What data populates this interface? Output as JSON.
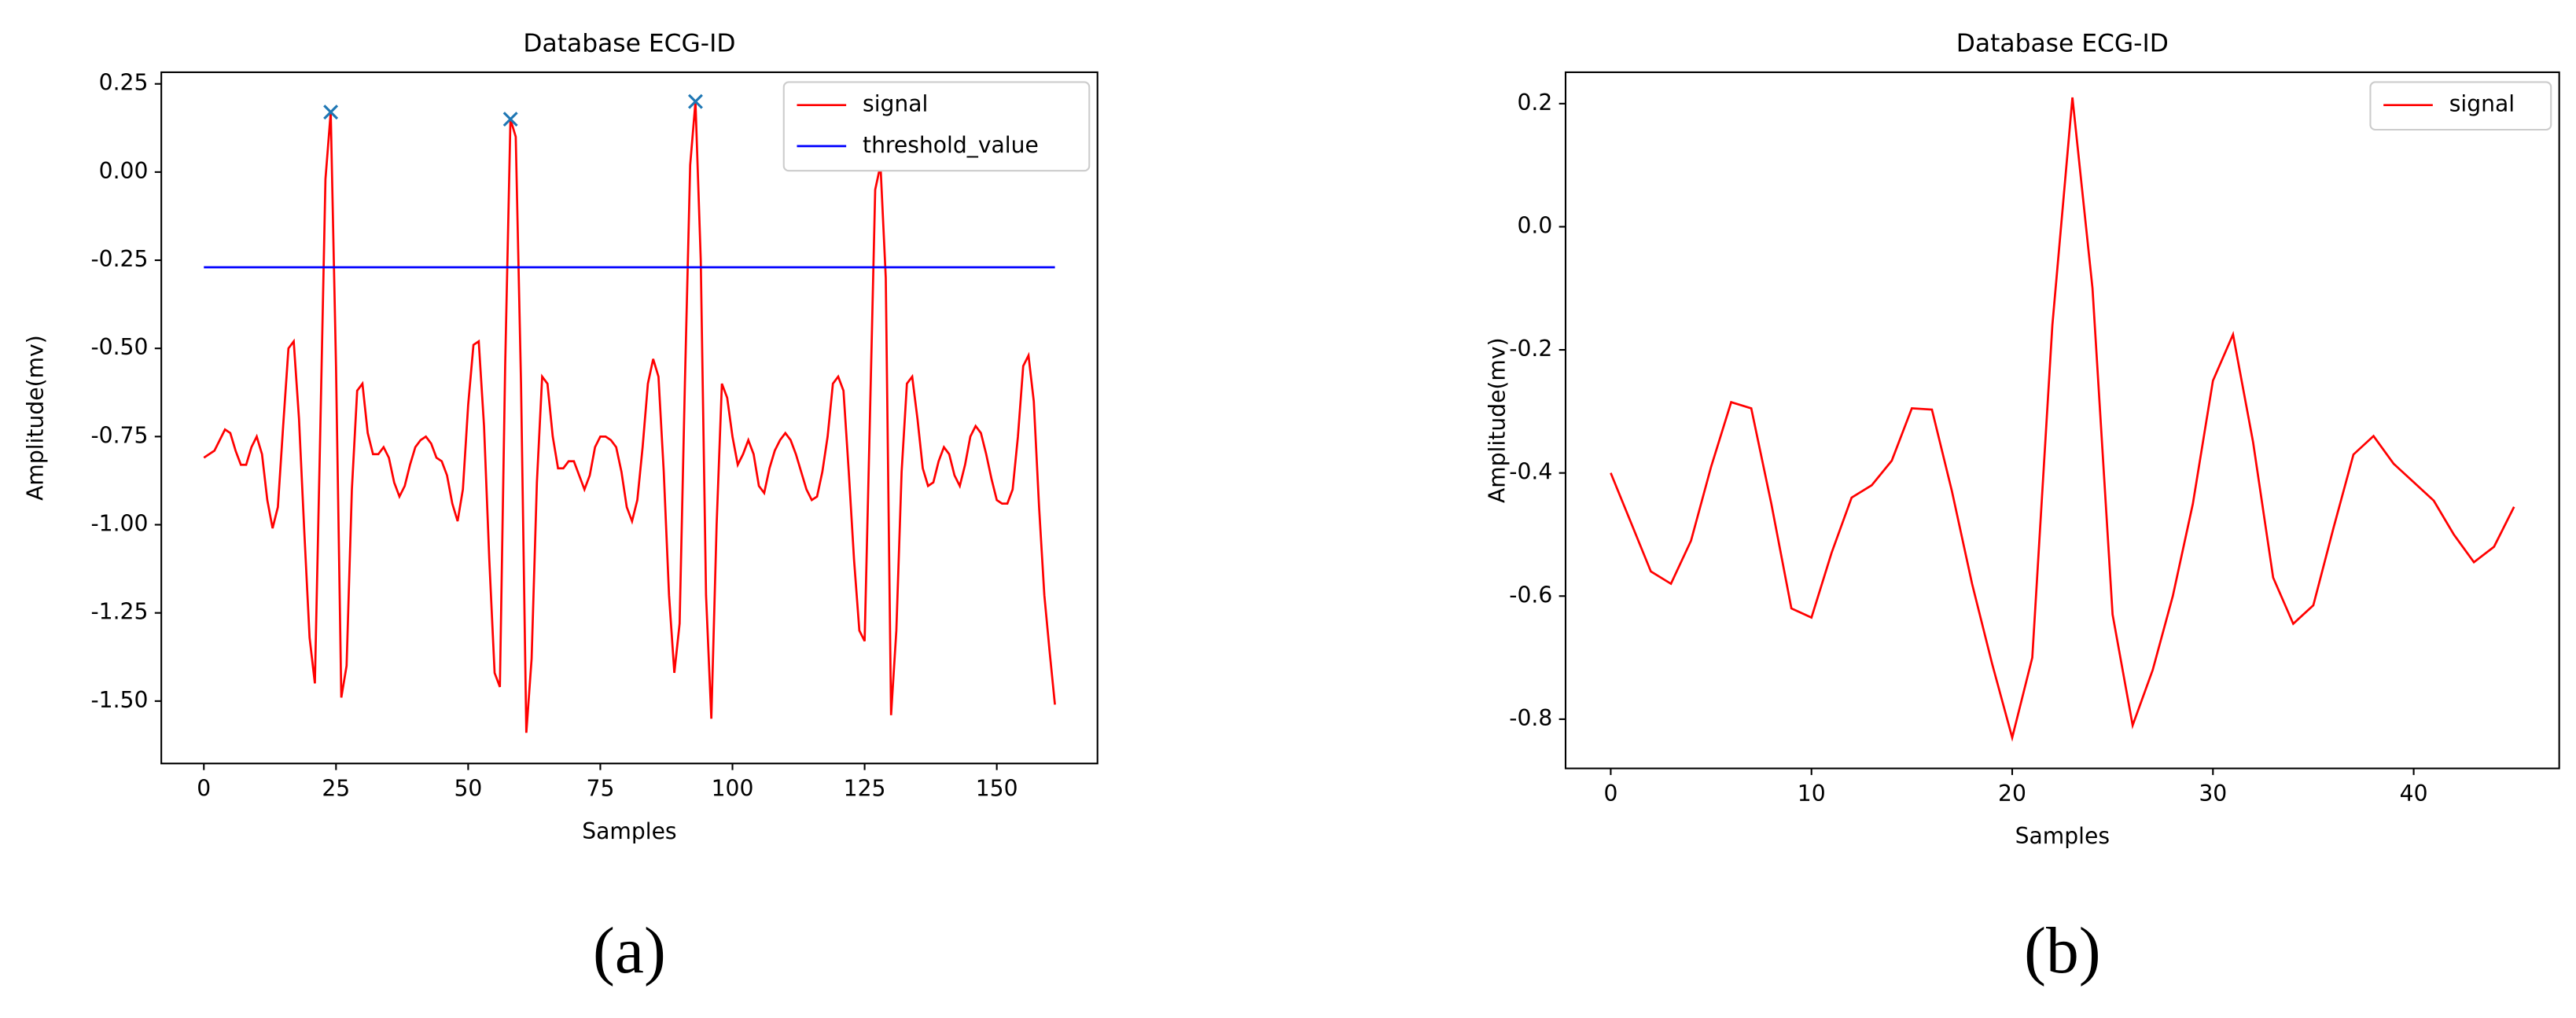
{
  "chart_data": [
    {
      "type": "line",
      "title": "Database ECG-ID",
      "xlabel": "Samples",
      "ylabel": "Amplitude(mv)",
      "caption": "(a)",
      "xlim": [
        -8.05,
        169.05
      ],
      "ylim": [
        -1.677,
        0.283
      ],
      "xticks": [
        0,
        25,
        50,
        75,
        100,
        125,
        150
      ],
      "yticks": [
        0.25,
        {
          "value": 0,
          "label": "0.00"
        },
        -0.25,
        {
          "value": -0.5,
          "label": "-0.50"
        },
        -0.75,
        {
          "value": -1,
          "label": "-1.00"
        },
        -1.25,
        {
          "value": -1.5,
          "label": "-1.50"
        }
      ],
      "grid": false,
      "legend": "upper right",
      "series": [
        {
          "name": "signal",
          "color": "#ff0000",
          "x": [
            0,
            1,
            2,
            3,
            4,
            5,
            6,
            7,
            8,
            9,
            10,
            11,
            12,
            13,
            14,
            15,
            16,
            17,
            18,
            19,
            20,
            21,
            22,
            23,
            24,
            25,
            26,
            27,
            28,
            29,
            30,
            31,
            32,
            33,
            34,
            35,
            36,
            37,
            38,
            39,
            40,
            41,
            42,
            43,
            44,
            45,
            46,
            47,
            48,
            49,
            50,
            51,
            52,
            53,
            54,
            55,
            56,
            57,
            58,
            59,
            60,
            61,
            62,
            63,
            64,
            65,
            66,
            67,
            68,
            69,
            70,
            71,
            72,
            73,
            74,
            75,
            76,
            77,
            78,
            79,
            80,
            81,
            82,
            83,
            84,
            85,
            86,
            87,
            88,
            89,
            90,
            91,
            92,
            93,
            94,
            95,
            96,
            97,
            98,
            99,
            100,
            101,
            102,
            103,
            104,
            105,
            106,
            107,
            108,
            109,
            110,
            111,
            112,
            113,
            114,
            115,
            116,
            117,
            118,
            119,
            120,
            121,
            122,
            123,
            124,
            125,
            126,
            127,
            128,
            129,
            130,
            131,
            132,
            133,
            134,
            135,
            136,
            137,
            138,
            139,
            140,
            141,
            142,
            143,
            144,
            145,
            146,
            147,
            148,
            149,
            150,
            151,
            152,
            153,
            154,
            155,
            156,
            157,
            158,
            159,
            160,
            161
          ],
          "values": [
            -0.81,
            -0.8,
            -0.79,
            -0.76,
            -0.73,
            -0.74,
            -0.79,
            -0.83,
            -0.83,
            -0.78,
            -0.75,
            -0.8,
            -0.93,
            -1.01,
            -0.95,
            -0.72,
            -0.5,
            -0.48,
            -0.7,
            -1.02,
            -1.32,
            -1.45,
            -0.75,
            -0.02,
            0.17,
            -0.55,
            -1.49,
            -1.4,
            -0.9,
            -0.62,
            -0.6,
            -0.74,
            -0.8,
            -0.8,
            -0.78,
            -0.81,
            -0.88,
            -0.92,
            -0.89,
            -0.83,
            -0.78,
            -0.76,
            -0.75,
            -0.77,
            -0.81,
            -0.82,
            -0.86,
            -0.94,
            -0.99,
            -0.9,
            -0.66,
            -0.49,
            -0.48,
            -0.72,
            -1.1,
            -1.42,
            -1.46,
            -0.55,
            0.15,
            0.1,
            -0.6,
            -1.59,
            -1.38,
            -0.88,
            -0.58,
            -0.6,
            -0.75,
            -0.84,
            -0.84,
            -0.82,
            -0.82,
            -0.86,
            -0.9,
            -0.86,
            -0.78,
            -0.75,
            -0.75,
            -0.76,
            -0.78,
            -0.85,
            -0.95,
            -0.99,
            -0.93,
            -0.78,
            -0.6,
            -0.53,
            -0.58,
            -0.85,
            -1.2,
            -1.42,
            -1.28,
            -0.6,
            0.02,
            0.2,
            -0.25,
            -1.2,
            -1.55,
            -1.0,
            -0.6,
            -0.64,
            -0.75,
            -0.83,
            -0.8,
            -0.76,
            -0.8,
            -0.89,
            -0.91,
            -0.84,
            -0.79,
            -0.76,
            -0.74,
            -0.76,
            -0.8,
            -0.85,
            -0.9,
            -0.93,
            -0.92,
            -0.85,
            -0.75,
            -0.6,
            -0.58,
            -0.62,
            -0.85,
            -1.1,
            -1.3,
            -1.33,
            -0.7,
            -0.05,
            0.02,
            -0.3,
            -1.54,
            -1.3,
            -0.85,
            -0.6,
            -0.58,
            -0.7,
            -0.84,
            -0.89,
            -0.88,
            -0.82,
            -0.78,
            -0.8,
            -0.86,
            -0.89,
            -0.83,
            -0.75,
            -0.72,
            -0.74,
            -0.8,
            -0.87,
            -0.93,
            -0.94,
            -0.94,
            -0.9,
            -0.75,
            -0.55,
            -0.52,
            -0.65,
            -0.95,
            -1.2,
            -1.36,
            -1.51
          ]
        },
        {
          "name": "threshold_value",
          "color": "#0000ff",
          "x": [
            0,
            161
          ],
          "values": [
            -0.27,
            -0.27
          ]
        }
      ],
      "peaks": {
        "x": [
          24,
          58,
          93
        ],
        "values": [
          0.17,
          0.15,
          0.2
        ],
        "color": "#1f77b4"
      }
    },
    {
      "type": "line",
      "title": "Database ECG-ID",
      "xlabel": "Samples",
      "ylabel": "Amplitude(mv)",
      "caption": "(b)",
      "xlim": [
        -2.25,
        47.25
      ],
      "ylim": [
        -0.88,
        0.251
      ],
      "xticks": [
        0,
        10,
        20,
        30,
        40
      ],
      "yticks": [
        0.2,
        {
          "value": 0,
          "label": "0.0"
        },
        -0.2,
        -0.4,
        -0.6,
        -0.8
      ],
      "grid": false,
      "legend": "upper right",
      "series": [
        {
          "name": "signal",
          "color": "#ff0000",
          "x": [
            0,
            1,
            2,
            3,
            4,
            5,
            6,
            7,
            8,
            9,
            10,
            11,
            12,
            13,
            14,
            15,
            16,
            17,
            18,
            19,
            20,
            21,
            22,
            23,
            24,
            25,
            26,
            27,
            28,
            29,
            30,
            31,
            32,
            33,
            34,
            35,
            36,
            37,
            38,
            39,
            40,
            41,
            42,
            43,
            44,
            45
          ],
          "values": [
            -0.4,
            -0.48,
            -0.56,
            -0.58,
            -0.51,
            -0.39,
            -0.285,
            -0.295,
            -0.45,
            -0.62,
            -0.635,
            -0.53,
            -0.44,
            -0.42,
            -0.38,
            -0.295,
            -0.297,
            -0.43,
            -0.58,
            -0.71,
            -0.83,
            -0.7,
            -0.16,
            0.21,
            -0.1,
            -0.63,
            -0.81,
            -0.72,
            -0.6,
            -0.45,
            -0.25,
            -0.175,
            -0.35,
            -0.57,
            -0.645,
            -0.615,
            -0.49,
            -0.37,
            -0.34,
            -0.385,
            -0.415,
            -0.445,
            -0.5,
            -0.545,
            -0.52,
            -0.455
          ]
        }
      ]
    }
  ]
}
